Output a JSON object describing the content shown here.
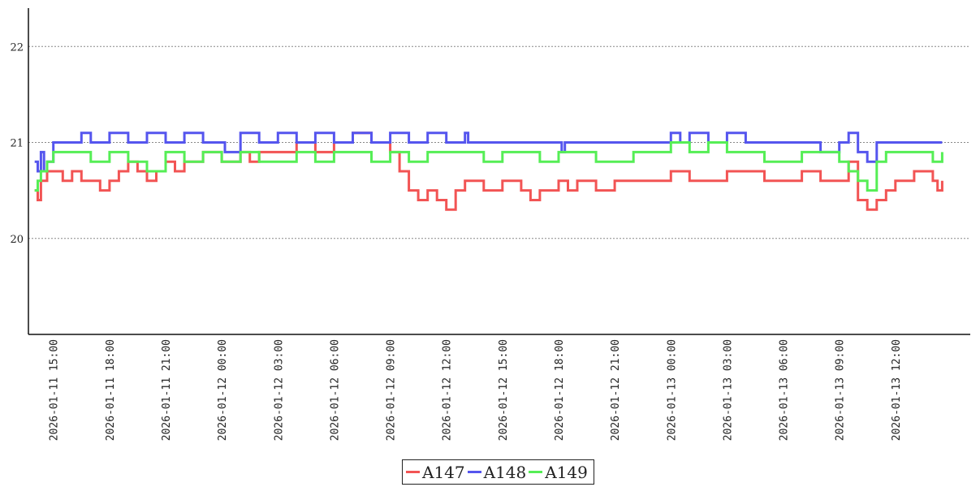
{
  "chart_data": {
    "type": "line",
    "title": "",
    "xlabel": "",
    "ylabel": "",
    "ylim": [
      19.0,
      22.4
    ],
    "xlim": [
      "2026-01-11 13:40",
      "2026-01-13 16:00"
    ],
    "grid": {
      "y": true,
      "x": false,
      "style": "dotted"
    },
    "y_ticks": [
      "20",
      "21",
      "22"
    ],
    "x_ticks": [
      "2026-01-11 15:00",
      "2026-01-11 18:00",
      "2026-01-11 21:00",
      "2026-01-12 00:00",
      "2026-01-12 03:00",
      "2026-01-12 06:00",
      "2026-01-12 09:00",
      "2026-01-12 12:00",
      "2026-01-12 15:00",
      "2026-01-12 18:00",
      "2026-01-12 21:00",
      "2026-01-13 00:00",
      "2026-01-13 03:00",
      "2026-01-13 06:00",
      "2026-01-13 09:00",
      "2026-01-13 12:00"
    ],
    "legend_position": "bottom-center",
    "series": [
      {
        "name": "A147",
        "color": "#f25454",
        "points": [
          [
            "2026-01-11 14:00",
            20.5
          ],
          [
            "2026-01-11 14:10",
            20.4
          ],
          [
            "2026-01-11 14:20",
            20.6
          ],
          [
            "2026-01-11 14:40",
            20.7
          ],
          [
            "2026-01-11 15:30",
            20.6
          ],
          [
            "2026-01-11 16:00",
            20.7
          ],
          [
            "2026-01-11 16:30",
            20.6
          ],
          [
            "2026-01-11 17:00",
            20.6
          ],
          [
            "2026-01-11 17:30",
            20.5
          ],
          [
            "2026-01-11 18:00",
            20.6
          ],
          [
            "2026-01-11 18:30",
            20.7
          ],
          [
            "2026-01-11 19:00",
            20.8
          ],
          [
            "2026-01-11 19:30",
            20.7
          ],
          [
            "2026-01-11 20:00",
            20.6
          ],
          [
            "2026-01-11 20:30",
            20.7
          ],
          [
            "2026-01-11 21:00",
            20.8
          ],
          [
            "2026-01-11 21:30",
            20.7
          ],
          [
            "2026-01-11 22:00",
            20.8
          ],
          [
            "2026-01-11 23:00",
            20.9
          ],
          [
            "2026-01-12 00:00",
            20.8
          ],
          [
            "2026-01-12 01:00",
            20.9
          ],
          [
            "2026-01-12 01:30",
            20.8
          ],
          [
            "2026-01-12 02:00",
            20.9
          ],
          [
            "2026-01-12 03:00",
            20.9
          ],
          [
            "2026-01-12 04:00",
            21.0
          ],
          [
            "2026-01-12 05:00",
            20.9
          ],
          [
            "2026-01-12 06:00",
            21.0
          ],
          [
            "2026-01-12 07:00",
            21.1
          ],
          [
            "2026-01-12 08:00",
            21.0
          ],
          [
            "2026-01-12 09:00",
            20.9
          ],
          [
            "2026-01-12 09:30",
            20.7
          ],
          [
            "2026-01-12 10:00",
            20.5
          ],
          [
            "2026-01-12 10:30",
            20.4
          ],
          [
            "2026-01-12 11:00",
            20.5
          ],
          [
            "2026-01-12 11:30",
            20.4
          ],
          [
            "2026-01-12 12:00",
            20.3
          ],
          [
            "2026-01-12 12:30",
            20.5
          ],
          [
            "2026-01-12 13:00",
            20.6
          ],
          [
            "2026-01-12 14:00",
            20.5
          ],
          [
            "2026-01-12 15:00",
            20.6
          ],
          [
            "2026-01-12 16:00",
            20.5
          ],
          [
            "2026-01-12 16:30",
            20.4
          ],
          [
            "2026-01-12 17:00",
            20.5
          ],
          [
            "2026-01-12 18:00",
            20.6
          ],
          [
            "2026-01-12 18:30",
            20.5
          ],
          [
            "2026-01-12 19:00",
            20.6
          ],
          [
            "2026-01-12 20:00",
            20.5
          ],
          [
            "2026-01-12 21:00",
            20.6
          ],
          [
            "2026-01-12 22:00",
            20.6
          ],
          [
            "2026-01-12 23:00",
            20.6
          ],
          [
            "2026-01-13 00:00",
            20.7
          ],
          [
            "2026-01-13 01:00",
            20.6
          ],
          [
            "2026-01-13 02:00",
            20.6
          ],
          [
            "2026-01-13 03:00",
            20.7
          ],
          [
            "2026-01-13 04:00",
            20.7
          ],
          [
            "2026-01-13 05:00",
            20.6
          ],
          [
            "2026-01-13 06:00",
            20.6
          ],
          [
            "2026-01-13 07:00",
            20.7
          ],
          [
            "2026-01-13 08:00",
            20.6
          ],
          [
            "2026-01-13 09:00",
            20.6
          ],
          [
            "2026-01-13 09:30",
            20.8
          ],
          [
            "2026-01-13 10:00",
            20.4
          ],
          [
            "2026-01-13 10:30",
            20.3
          ],
          [
            "2026-01-13 11:00",
            20.4
          ],
          [
            "2026-01-13 11:30",
            20.5
          ],
          [
            "2026-01-13 12:00",
            20.6
          ],
          [
            "2026-01-13 13:00",
            20.7
          ],
          [
            "2026-01-13 14:00",
            20.6
          ],
          [
            "2026-01-13 14:15",
            20.5
          ],
          [
            "2026-01-13 14:30",
            20.6
          ]
        ]
      },
      {
        "name": "A148",
        "color": "#5555ee",
        "points": [
          [
            "2026-01-11 14:00",
            20.8
          ],
          [
            "2026-01-11 14:10",
            20.7
          ],
          [
            "2026-01-11 14:20",
            20.9
          ],
          [
            "2026-01-11 14:30",
            20.7
          ],
          [
            "2026-01-11 14:40",
            20.8
          ],
          [
            "2026-01-11 15:00",
            21.0
          ],
          [
            "2026-01-11 16:00",
            21.0
          ],
          [
            "2026-01-11 16:30",
            21.1
          ],
          [
            "2026-01-11 17:00",
            21.0
          ],
          [
            "2026-01-11 18:00",
            21.1
          ],
          [
            "2026-01-11 19:00",
            21.0
          ],
          [
            "2026-01-11 20:00",
            21.1
          ],
          [
            "2026-01-11 21:00",
            21.0
          ],
          [
            "2026-01-11 22:00",
            21.1
          ],
          [
            "2026-01-11 23:00",
            21.0
          ],
          [
            "2026-01-12 00:00",
            21.0
          ],
          [
            "2026-01-12 00:10",
            20.9
          ],
          [
            "2026-01-12 01:00",
            21.1
          ],
          [
            "2026-01-12 02:00",
            21.0
          ],
          [
            "2026-01-12 03:00",
            21.1
          ],
          [
            "2026-01-12 04:00",
            21.0
          ],
          [
            "2026-01-12 05:00",
            21.1
          ],
          [
            "2026-01-12 06:00",
            21.0
          ],
          [
            "2026-01-12 07:00",
            21.1
          ],
          [
            "2026-01-12 08:00",
            21.0
          ],
          [
            "2026-01-12 09:00",
            21.1
          ],
          [
            "2026-01-12 10:00",
            21.0
          ],
          [
            "2026-01-12 11:00",
            21.1
          ],
          [
            "2026-01-12 12:00",
            21.0
          ],
          [
            "2026-01-12 13:00",
            21.1
          ],
          [
            "2026-01-12 13:10",
            21.0
          ],
          [
            "2026-01-12 18:00",
            21.0
          ],
          [
            "2026-01-12 18:10",
            20.9
          ],
          [
            "2026-01-12 18:20",
            21.0
          ],
          [
            "2026-01-12 23:00",
            21.0
          ],
          [
            "2026-01-13 00:00",
            21.1
          ],
          [
            "2026-01-13 00:30",
            21.0
          ],
          [
            "2026-01-13 01:00",
            21.1
          ],
          [
            "2026-01-13 02:00",
            21.0
          ],
          [
            "2026-01-13 03:00",
            21.1
          ],
          [
            "2026-01-13 04:00",
            21.0
          ],
          [
            "2026-01-13 07:00",
            21.0
          ],
          [
            "2026-01-13 08:00",
            20.9
          ],
          [
            "2026-01-13 09:00",
            21.0
          ],
          [
            "2026-01-13 09:30",
            21.1
          ],
          [
            "2026-01-13 10:00",
            20.9
          ],
          [
            "2026-01-13 10:30",
            20.8
          ],
          [
            "2026-01-13 11:00",
            21.0
          ],
          [
            "2026-01-13 14:30",
            21.0
          ]
        ]
      },
      {
        "name": "A149",
        "color": "#55ee55",
        "points": [
          [
            "2026-01-11 14:00",
            20.5
          ],
          [
            "2026-01-11 14:10",
            20.6
          ],
          [
            "2026-01-11 14:20",
            20.7
          ],
          [
            "2026-01-11 14:40",
            20.8
          ],
          [
            "2026-01-11 15:00",
            20.9
          ],
          [
            "2026-01-11 16:00",
            20.9
          ],
          [
            "2026-01-11 17:00",
            20.8
          ],
          [
            "2026-01-11 18:00",
            20.9
          ],
          [
            "2026-01-11 19:00",
            20.8
          ],
          [
            "2026-01-11 20:00",
            20.7
          ],
          [
            "2026-01-11 21:00",
            20.9
          ],
          [
            "2026-01-11 22:00",
            20.8
          ],
          [
            "2026-01-11 23:00",
            20.9
          ],
          [
            "2026-01-12 00:00",
            20.8
          ],
          [
            "2026-01-12 01:00",
            20.9
          ],
          [
            "2026-01-12 02:00",
            20.8
          ],
          [
            "2026-01-12 03:00",
            20.8
          ],
          [
            "2026-01-12 04:00",
            20.9
          ],
          [
            "2026-01-12 05:00",
            20.8
          ],
          [
            "2026-01-12 06:00",
            20.9
          ],
          [
            "2026-01-12 07:00",
            20.9
          ],
          [
            "2026-01-12 08:00",
            20.8
          ],
          [
            "2026-01-12 09:00",
            20.9
          ],
          [
            "2026-01-12 10:00",
            20.8
          ],
          [
            "2026-01-12 11:00",
            20.9
          ],
          [
            "2026-01-12 13:00",
            20.9
          ],
          [
            "2026-01-12 14:00",
            20.8
          ],
          [
            "2026-01-12 15:00",
            20.9
          ],
          [
            "2026-01-12 17:00",
            20.8
          ],
          [
            "2026-01-12 18:00",
            20.9
          ],
          [
            "2026-01-12 20:00",
            20.8
          ],
          [
            "2026-01-12 22:00",
            20.9
          ],
          [
            "2026-01-13 00:00",
            21.0
          ],
          [
            "2026-01-13 01:00",
            20.9
          ],
          [
            "2026-01-13 02:00",
            21.0
          ],
          [
            "2026-01-13 03:00",
            20.9
          ],
          [
            "2026-01-13 05:00",
            20.8
          ],
          [
            "2026-01-13 07:00",
            20.9
          ],
          [
            "2026-01-13 09:00",
            20.8
          ],
          [
            "2026-01-13 09:30",
            20.7
          ],
          [
            "2026-01-13 10:00",
            20.6
          ],
          [
            "2026-01-13 10:30",
            20.5
          ],
          [
            "2026-01-13 11:00",
            20.8
          ],
          [
            "2026-01-13 11:30",
            20.9
          ],
          [
            "2026-01-13 13:00",
            20.9
          ],
          [
            "2026-01-13 14:00",
            20.8
          ],
          [
            "2026-01-13 14:30",
            20.9
          ]
        ]
      }
    ]
  }
}
